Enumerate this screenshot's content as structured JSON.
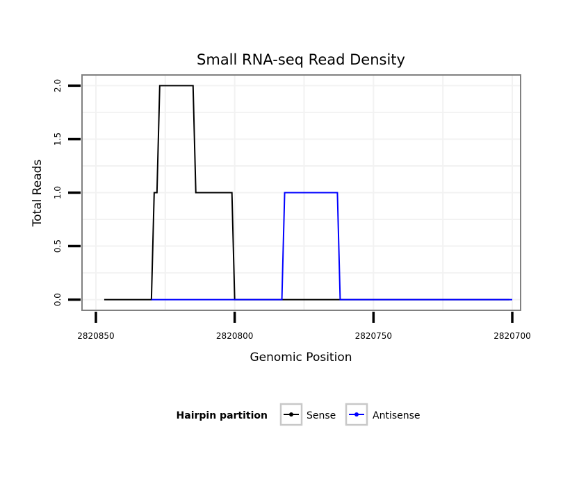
{
  "chart_data": {
    "type": "line",
    "title": "Small RNA-seq Read Density",
    "xlabel": "Genomic Position",
    "ylabel": "Total Reads",
    "x_reversed": true,
    "xlim": [
      2820855,
      2820697
    ],
    "ylim": [
      -0.1,
      2.1
    ],
    "x_ticks": [
      2820850,
      2820800,
      2820750,
      2820700
    ],
    "x_tick_labels": [
      "2820850",
      "2820800",
      "2820750",
      "2820700"
    ],
    "y_ticks": [
      0,
      0.5,
      1,
      1.5,
      2
    ],
    "y_tick_labels": [
      "0.0",
      "0.5",
      "1.0",
      "1.5",
      "2.0"
    ],
    "grid": true,
    "legend": {
      "title": "Hairpin partition",
      "position": "bottom",
      "entries": [
        "Sense",
        "Antisense"
      ]
    },
    "series": [
      {
        "name": "Sense",
        "color": "#000000",
        "points": [
          [
            2820847,
            0
          ],
          [
            2820830,
            0
          ],
          [
            2820829,
            1
          ],
          [
            2820828,
            1
          ],
          [
            2820827,
            2
          ],
          [
            2820815,
            2
          ],
          [
            2820814,
            1
          ],
          [
            2820801,
            1
          ],
          [
            2820800,
            0
          ],
          [
            2820783,
            0
          ],
          [
            2820766,
            0
          ],
          [
            2820701,
            0
          ]
        ]
      },
      {
        "name": "Antisense",
        "color": "#0000ff",
        "points": [
          [
            2820830,
            0
          ],
          [
            2820800,
            0
          ],
          [
            2820783,
            0
          ],
          [
            2820782,
            1
          ],
          [
            2820763,
            1
          ],
          [
            2820762,
            0
          ],
          [
            2820700,
            0
          ]
        ]
      }
    ]
  }
}
